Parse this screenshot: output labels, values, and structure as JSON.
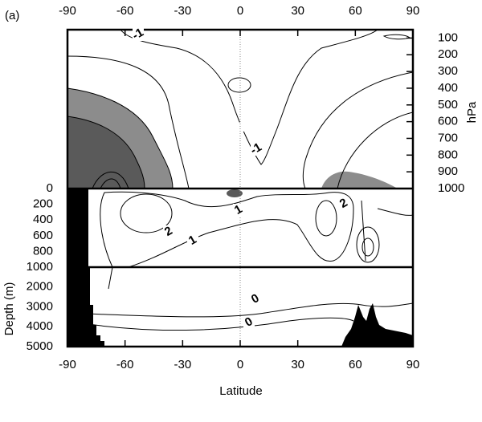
{
  "chart_data": {
    "type": "contour",
    "title": "(a)",
    "xlabel": "Latitude",
    "xlim": [
      -90,
      90
    ],
    "xticks": [
      -90,
      -60,
      -30,
      0,
      30,
      60,
      90
    ],
    "panels": [
      {
        "ylabel": "hPa",
        "ylim": [
          50,
          1000
        ],
        "yticks": [
          100,
          200,
          300,
          400,
          500,
          600,
          700,
          800,
          900,
          1000
        ]
      },
      {
        "ylim": [
          0,
          1000
        ],
        "yticks": [
          0,
          200,
          400,
          600,
          800,
          1000
        ]
      },
      {
        "ylabel": "Depth (m)",
        "ylim": [
          1000,
          5000
        ],
        "yticks": [
          2000,
          3000,
          4000,
          5000
        ]
      }
    ],
    "contour_labels": [
      "-1",
      "-1",
      "1",
      "2",
      "1",
      "2",
      "0",
      "0"
    ]
  }
}
